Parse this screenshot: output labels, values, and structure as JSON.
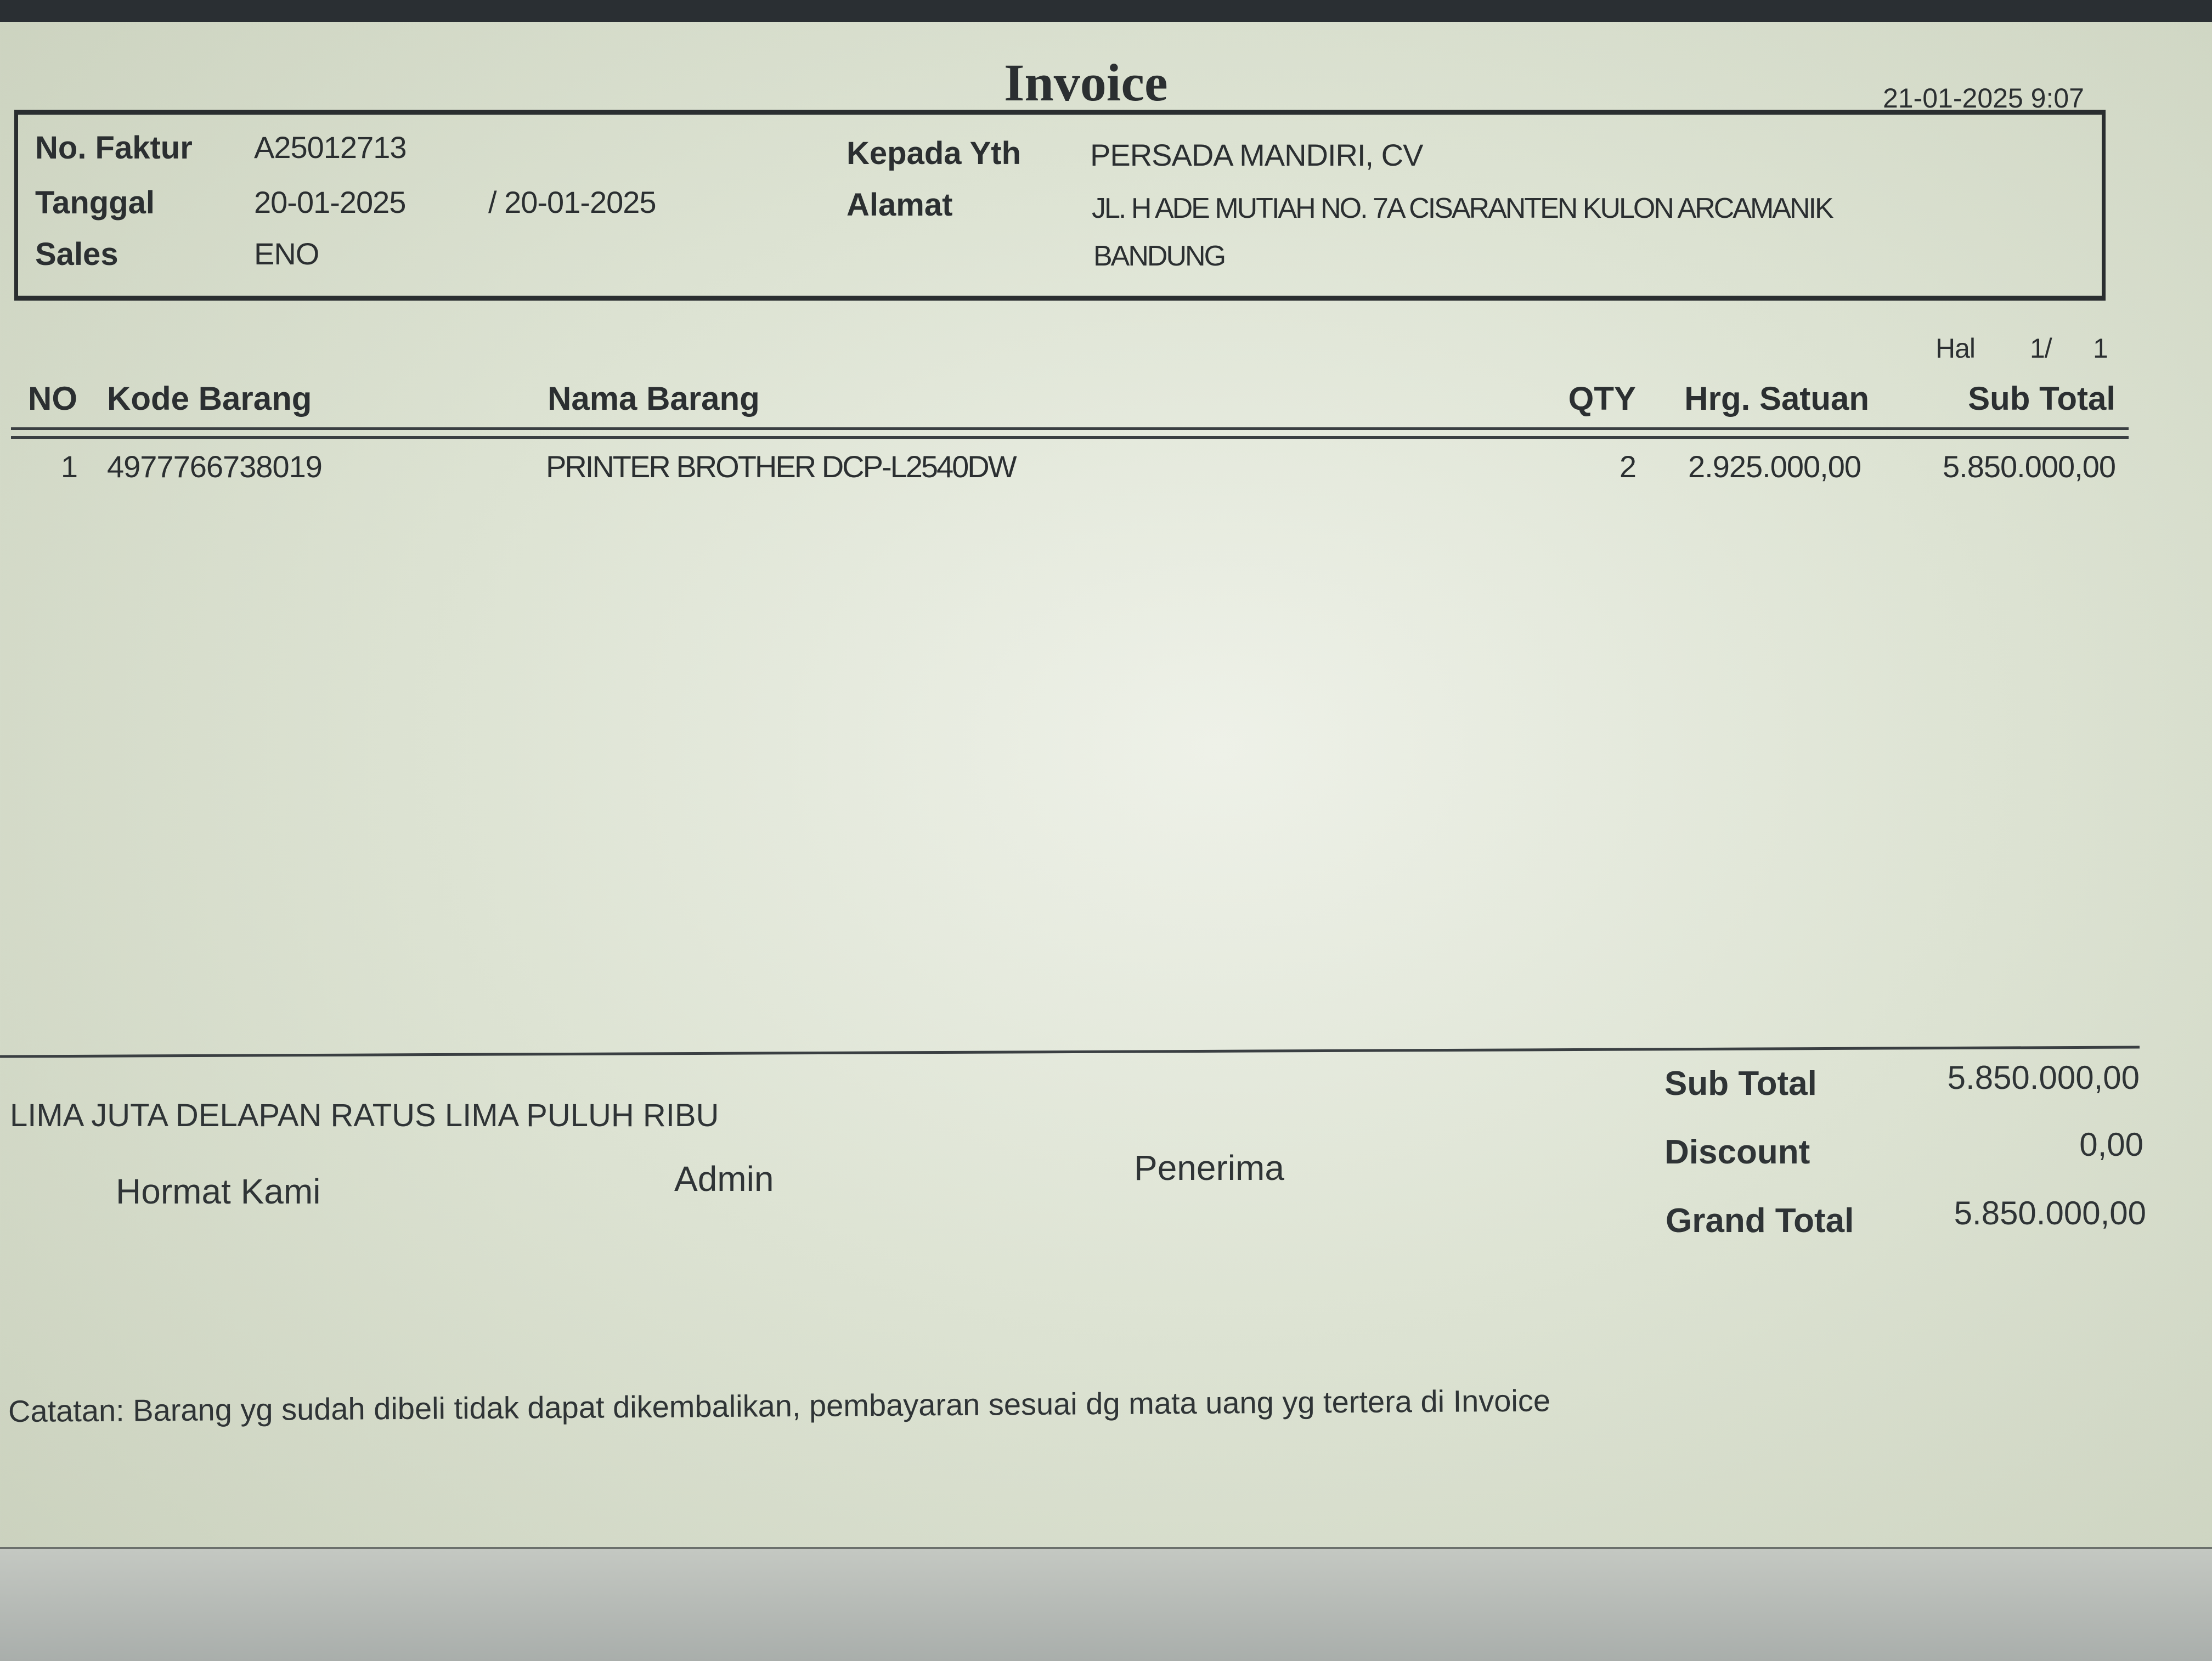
{
  "title": "Invoice",
  "printed_at": "21-01-2025 9:07",
  "header": {
    "no_faktur_label": "No. Faktur",
    "no_faktur": "A25012713",
    "tanggal_label": "Tanggal",
    "tanggal": "20-01-2025",
    "tanggal_due": "/ 20-01-2025",
    "sales_label": "Sales",
    "sales": "ENO",
    "kepada_label": "Kepada Yth",
    "kepada": "PERSADA MANDIRI, CV",
    "alamat_label": "Alamat",
    "alamat_1": "JL. H ADE MUTIAH NO. 7A CISARANTEN KULON ARCAMANIK",
    "alamat_2": "BANDUNG"
  },
  "page": {
    "label": "Hal",
    "current": "1/",
    "total": "1"
  },
  "table": {
    "columns": [
      "NO",
      "Kode Barang",
      "Nama Barang",
      "QTY",
      "Hrg. Satuan",
      "Sub Total"
    ],
    "rows": [
      {
        "no": "1",
        "kode": "4977766738019",
        "nama": "PRINTER BROTHER DCP-L2540DW",
        "qty": "2",
        "harga": "2.925.000,00",
        "subtotal": "5.850.000,00"
      }
    ]
  },
  "footer": {
    "terbilang": "LIMA JUTA DELAPAN RATUS LIMA PULUH RIBU",
    "hormat_kami": "Hormat Kami",
    "admin": "Admin",
    "penerima": "Penerima",
    "sub_total_label": "Sub Total",
    "sub_total": "5.850.000,00",
    "discount_label": "Discount",
    "discount": "0,00",
    "grand_total_label": "Grand Total",
    "grand_total": "5.850.000,00",
    "catatan": "Catatan: Barang yg sudah dibeli tidak dapat dikembalikan, pembayaran sesuai dg mata uang yg tertera di Invoice"
  }
}
